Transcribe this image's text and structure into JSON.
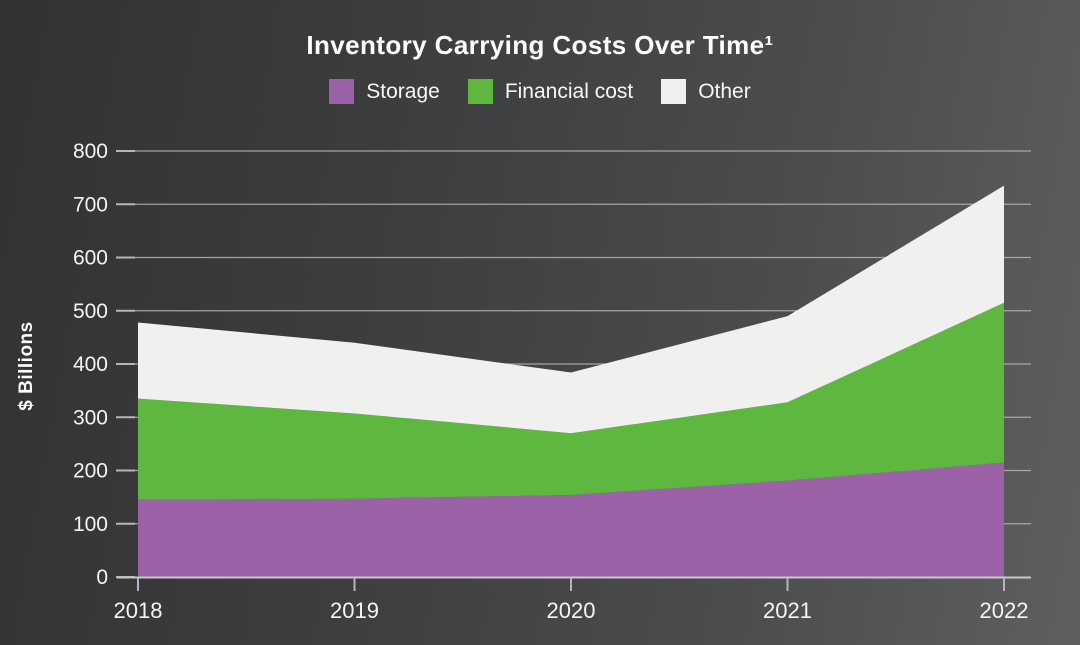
{
  "title": "Inventory Carrying Costs Over Time¹",
  "y_axis_label": "$ Billions",
  "legend": [
    {
      "label": "Storage",
      "color": "#9b62a7"
    },
    {
      "label": "Financial cost",
      "color": "#5eb73f"
    },
    {
      "label": "Other",
      "color": "#f0f0ee"
    }
  ],
  "chart_data": {
    "type": "area",
    "stacked": true,
    "title": "Inventory Carrying Costs Over Time¹",
    "ylabel": "$ Billions",
    "xlabel": "",
    "categories": [
      "2018",
      "2019",
      "2020",
      "2021",
      "2022"
    ],
    "series": [
      {
        "name": "Storage",
        "color": "#9b62a7",
        "values": [
          145,
          147,
          154,
          181,
          215
        ]
      },
      {
        "name": "Financial cost",
        "color": "#5eb73f",
        "values": [
          190,
          160,
          116,
          147,
          300
        ]
      },
      {
        "name": "Other",
        "color": "#f0f0ee",
        "values": [
          143,
          133,
          114,
          162,
          220
        ]
      }
    ],
    "stack_totals": [
      478,
      440,
      384,
      490,
      735
    ],
    "ylim": [
      0,
      800
    ],
    "yticks": [
      0,
      100,
      200,
      300,
      400,
      500,
      600,
      700,
      800
    ],
    "grid": true,
    "legend_position": "top"
  },
  "colors": {
    "background_left": "#323233",
    "background_right": "#5e5f61",
    "gridline": "#b5b5b5",
    "axis_line": "#c8c8c8",
    "tick": "#b5b5b5",
    "text": "#f4f4f4"
  }
}
